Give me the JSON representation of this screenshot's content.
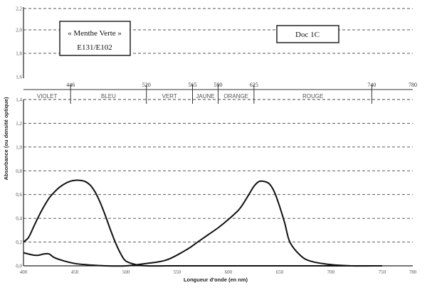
{
  "title_box": {
    "line1": "« Menthe Verte »",
    "line2": "E131/E102"
  },
  "doc_label": "Doc 1C",
  "upper_ticks": [
    "2,2",
    "2,0",
    "1,8",
    "1,6"
  ],
  "wavelength_marks": [
    {
      "value": 446,
      "label": "446"
    },
    {
      "value": 520,
      "label": "520"
    },
    {
      "value": 565,
      "label": "565"
    },
    {
      "value": 590,
      "label": "590"
    },
    {
      "value": 625,
      "label": "625"
    },
    {
      "value": 740,
      "label": "740"
    },
    {
      "value": 780,
      "label": "780"
    }
  ],
  "color_bands": [
    {
      "label": "VIOLET",
      "from": 400,
      "to": 446
    },
    {
      "label": "BLEU",
      "from": 446,
      "to": 520
    },
    {
      "label": "VERT",
      "from": 520,
      "to": 565
    },
    {
      "label": "JAUNE",
      "from": 565,
      "to": 590
    },
    {
      "label": "ORANGE",
      "from": 590,
      "to": 625
    },
    {
      "label": "ROUGE",
      "from": 625,
      "to": 740
    }
  ],
  "chart_data": {
    "type": "line",
    "xlabel": "Longueur d'onde (en nm)",
    "ylabel": "Absorbance (ou densité optique)",
    "xlim": [
      400,
      780
    ],
    "ylim": [
      0,
      1.4
    ],
    "grid": true,
    "x_ticks": [
      "400",
      "450",
      "500",
      "550",
      "600",
      "650",
      "700",
      "750",
      "780"
    ],
    "y_ticks": [
      "0,0",
      "0,2",
      "0,4",
      "0,6",
      "0,8",
      "1,0",
      "1,2",
      "1,4"
    ],
    "series": [
      {
        "x": [
          400,
          405,
          410,
          415,
          420,
          425,
          430,
          435,
          440,
          445,
          450,
          455,
          460,
          465,
          470,
          475,
          480,
          485,
          490,
          495,
          500,
          510,
          520,
          540,
          560,
          580,
          600,
          650,
          700,
          750
        ],
        "y": [
          0.2,
          0.24,
          0.33,
          0.42,
          0.5,
          0.57,
          0.62,
          0.66,
          0.69,
          0.71,
          0.72,
          0.72,
          0.71,
          0.68,
          0.62,
          0.53,
          0.42,
          0.3,
          0.19,
          0.1,
          0.04,
          0.01,
          0.0,
          0.0,
          0.0,
          0.0,
          0.0,
          0.0,
          0.0,
          0.0
        ]
      },
      {
        "x": [
          400,
          410,
          415,
          420,
          425,
          430,
          440,
          450,
          460,
          480,
          500,
          520,
          540,
          560,
          570,
          580,
          590,
          600,
          610,
          615,
          620,
          625,
          630,
          635,
          640,
          645,
          650,
          655,
          660,
          670,
          680,
          700,
          720,
          750
        ],
        "y": [
          0.11,
          0.09,
          0.09,
          0.1,
          0.1,
          0.07,
          0.04,
          0.02,
          0.01,
          0.0,
          0.0,
          0.02,
          0.05,
          0.14,
          0.2,
          0.26,
          0.32,
          0.39,
          0.47,
          0.53,
          0.6,
          0.67,
          0.71,
          0.71,
          0.69,
          0.62,
          0.5,
          0.36,
          0.2,
          0.09,
          0.04,
          0.01,
          0.0,
          0.0
        ]
      }
    ]
  }
}
